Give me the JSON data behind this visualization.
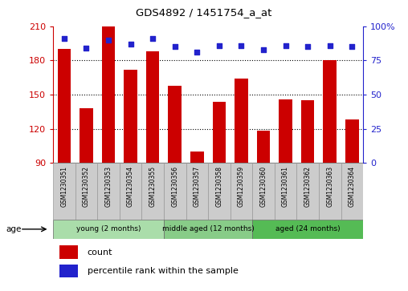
{
  "title": "GDS4892 / 1451754_a_at",
  "samples": [
    "GSM1230351",
    "GSM1230352",
    "GSM1230353",
    "GSM1230354",
    "GSM1230355",
    "GSM1230356",
    "GSM1230357",
    "GSM1230358",
    "GSM1230359",
    "GSM1230360",
    "GSM1230361",
    "GSM1230362",
    "GSM1230363",
    "GSM1230364"
  ],
  "counts": [
    190,
    138,
    210,
    172,
    188,
    158,
    100,
    144,
    164,
    118,
    146,
    145,
    180,
    128
  ],
  "percentiles": [
    91,
    84,
    90,
    87,
    91,
    85,
    81,
    86,
    86,
    83,
    86,
    85,
    86,
    85
  ],
  "groups": [
    {
      "label": "young (2 months)",
      "start": 0,
      "end": 5
    },
    {
      "label": "middle aged (12 months)",
      "start": 5,
      "end": 9
    },
    {
      "label": "aged (24 months)",
      "start": 9,
      "end": 14
    }
  ],
  "group_colors": [
    "#AADDAA",
    "#88CC88",
    "#55BB55"
  ],
  "ylim_left": [
    90,
    210
  ],
  "ylim_right": [
    0,
    100
  ],
  "yticks_left": [
    90,
    120,
    150,
    180,
    210
  ],
  "yticks_right": [
    0,
    25,
    50,
    75,
    100
  ],
  "bar_color": "#CC0000",
  "dot_color": "#2222CC",
  "title_color": "#000000",
  "left_axis_color": "#CC0000",
  "right_axis_color": "#2222CC",
  "background_color": "#FFFFFF",
  "grid_color": "#000000",
  "sample_box_color": "#CCCCCC",
  "legend_items": [
    "count",
    "percentile rank within the sample"
  ]
}
